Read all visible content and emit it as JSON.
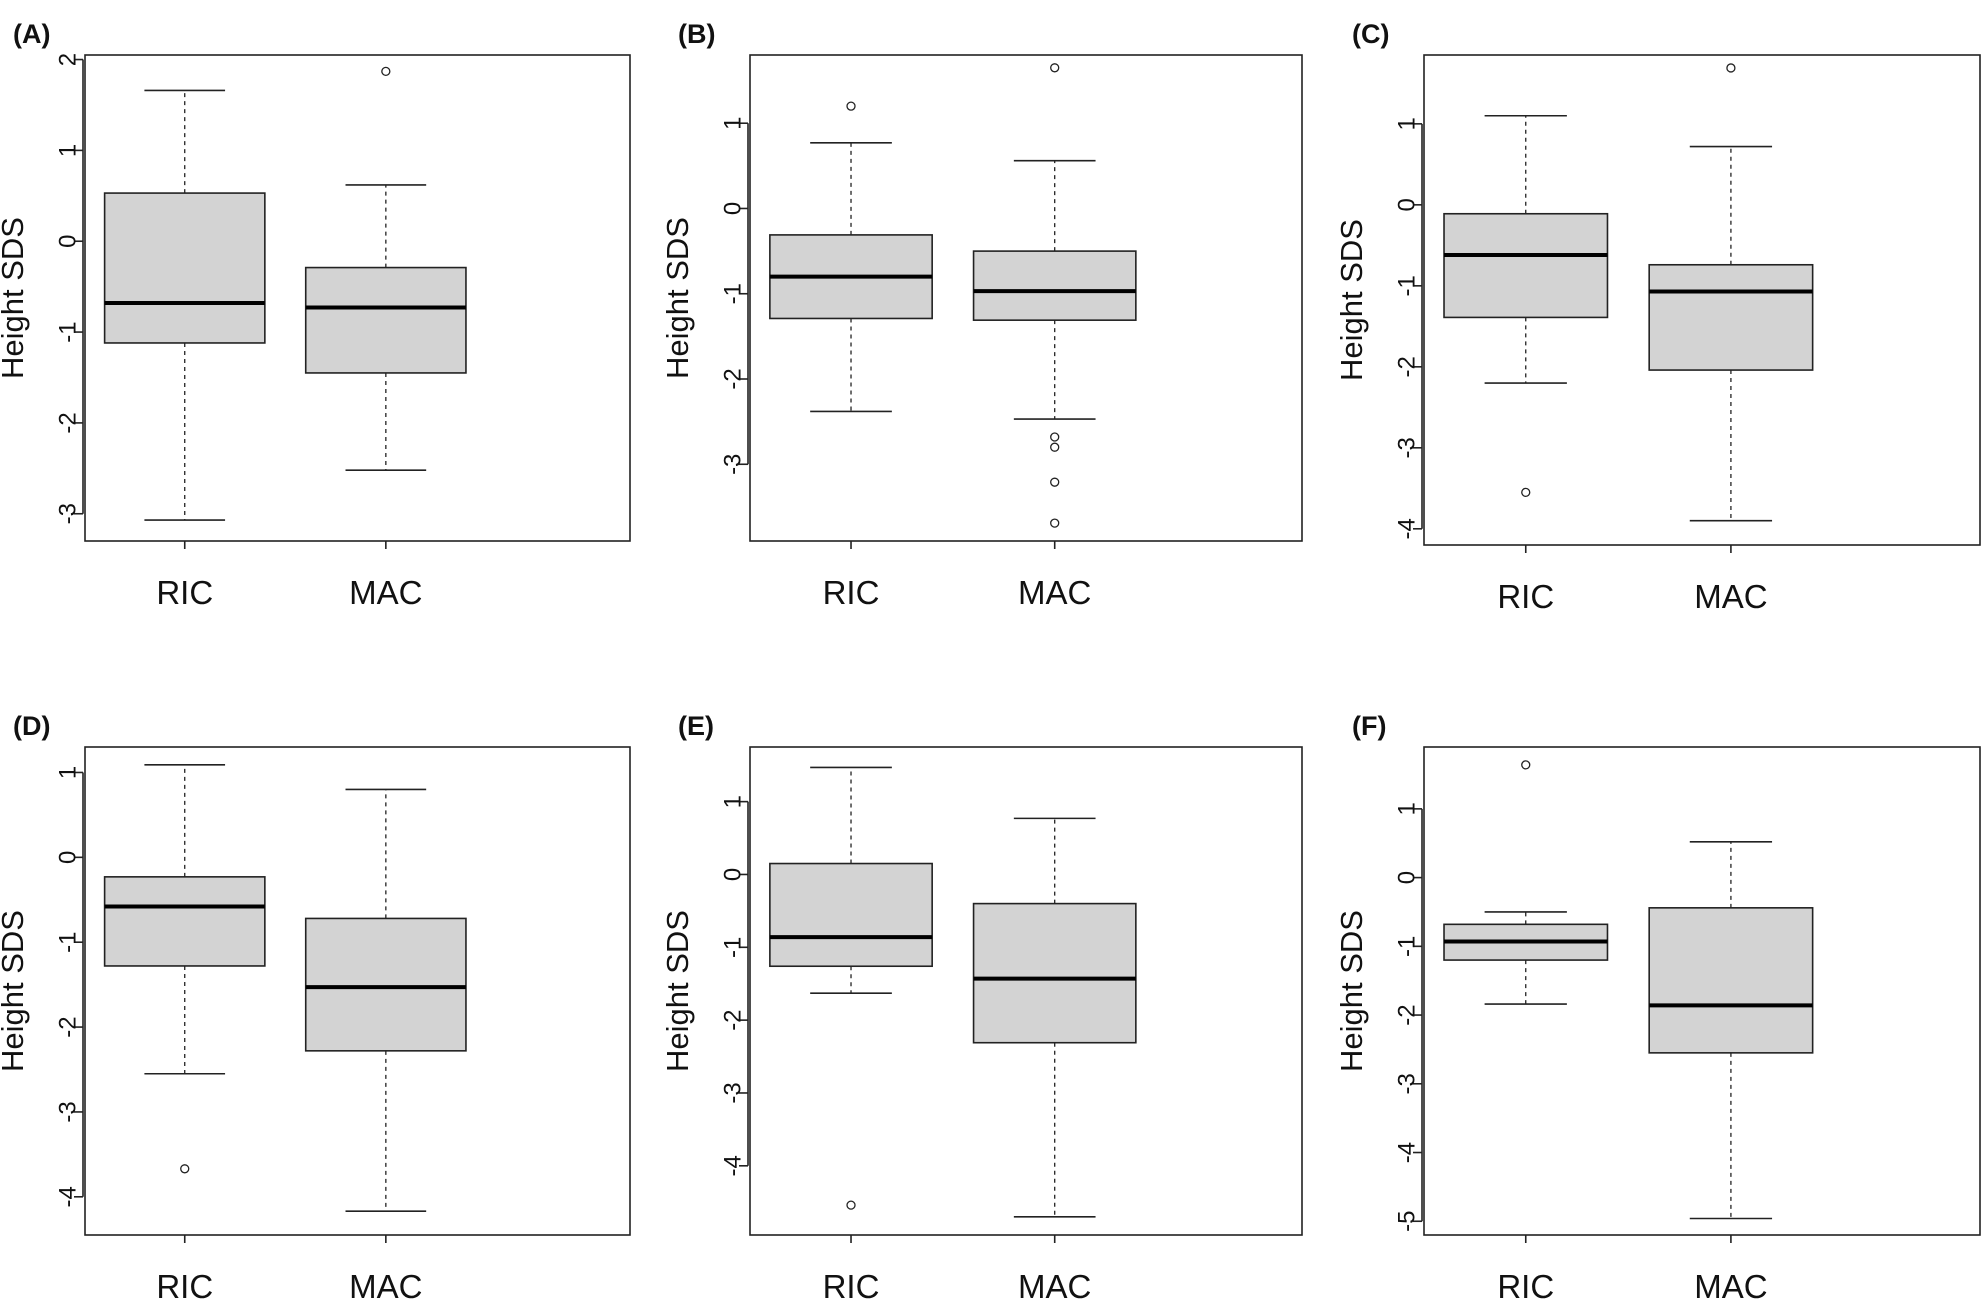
{
  "chart_data": [
    {
      "panel": "(A)",
      "type": "box",
      "ylabel": "Height SDS",
      "ylim": [
        -3.3,
        2.05
      ],
      "yticks": [
        -3,
        -2,
        -1,
        0,
        1,
        2
      ],
      "categories": [
        "RIC",
        "MAC"
      ],
      "boxes": [
        {
          "whisker_low": -3.07,
          "q1": -1.12,
          "median": -0.68,
          "q3": 0.53,
          "whisker_high": 1.66,
          "outliers": []
        },
        {
          "whisker_low": -2.52,
          "q1": -1.45,
          "median": -0.73,
          "q3": -0.29,
          "whisker_high": 0.62,
          "outliers": [
            1.87
          ]
        }
      ]
    },
    {
      "panel": "(B)",
      "type": "box",
      "ylabel": "Height SDS",
      "ylim": [
        -3.9,
        1.8
      ],
      "yticks": [
        -3,
        -2,
        -1,
        0,
        1
      ],
      "categories": [
        "RIC",
        "MAC"
      ],
      "boxes": [
        {
          "whisker_low": -2.38,
          "q1": -1.29,
          "median": -0.8,
          "q3": -0.31,
          "whisker_high": 0.77,
          "outliers": [
            1.2
          ]
        },
        {
          "whisker_low": -2.47,
          "q1": -1.31,
          "median": -0.97,
          "q3": -0.5,
          "whisker_high": 0.56,
          "outliers": [
            1.65,
            -2.68,
            -2.8,
            -3.21,
            -3.69
          ]
        }
      ]
    },
    {
      "panel": "(C)",
      "type": "box",
      "ylabel": "Height SDS",
      "ylim": [
        -4.2,
        1.85
      ],
      "yticks": [
        -4,
        -3,
        -2,
        -1,
        0,
        1
      ],
      "categories": [
        "RIC",
        "MAC"
      ],
      "boxes": [
        {
          "whisker_low": -2.2,
          "q1": -1.39,
          "median": -0.62,
          "q3": -0.11,
          "whisker_high": 1.1,
          "outliers": [
            -3.55
          ]
        },
        {
          "whisker_low": -3.9,
          "q1": -2.04,
          "median": -1.07,
          "q3": -0.74,
          "whisker_high": 0.72,
          "outliers": [
            1.69
          ]
        }
      ]
    },
    {
      "panel": "(D)",
      "type": "box",
      "ylabel": "Height SDS",
      "ylim": [
        -4.45,
        1.3
      ],
      "yticks": [
        -4,
        -3,
        -2,
        -1,
        0,
        1
      ],
      "categories": [
        "RIC",
        "MAC"
      ],
      "boxes": [
        {
          "whisker_low": -2.55,
          "q1": -1.28,
          "median": -0.58,
          "q3": -0.23,
          "whisker_high": 1.09,
          "outliers": [
            -3.67
          ]
        },
        {
          "whisker_low": -4.17,
          "q1": -2.28,
          "median": -1.53,
          "q3": -0.72,
          "whisker_high": 0.8,
          "outliers": []
        }
      ]
    },
    {
      "panel": "(E)",
      "type": "box",
      "ylabel": "Height SDS",
      "ylim": [
        -4.95,
        1.75
      ],
      "yticks": [
        -4,
        -3,
        -2,
        -1,
        0,
        1
      ],
      "categories": [
        "RIC",
        "MAC"
      ],
      "boxes": [
        {
          "whisker_low": -1.63,
          "q1": -1.26,
          "median": -0.86,
          "q3": 0.15,
          "whisker_high": 1.47,
          "outliers": [
            -4.54
          ]
        },
        {
          "whisker_low": -4.7,
          "q1": -2.31,
          "median": -1.43,
          "q3": -0.4,
          "whisker_high": 0.77,
          "outliers": []
        }
      ]
    },
    {
      "panel": "(F)",
      "type": "box",
      "ylabel": "Height SDS",
      "ylim": [
        -5.2,
        1.9
      ],
      "yticks": [
        -5,
        -4,
        -3,
        -2,
        -1,
        0,
        1
      ],
      "categories": [
        "RIC",
        "MAC"
      ],
      "boxes": [
        {
          "whisker_low": -1.84,
          "q1": -1.2,
          "median": -0.93,
          "q3": -0.68,
          "whisker_high": -0.5,
          "outliers": [
            1.64
          ]
        },
        {
          "whisker_low": -4.96,
          "q1": -2.55,
          "median": -1.86,
          "q3": -0.44,
          "whisker_high": 0.52,
          "outliers": []
        }
      ]
    }
  ]
}
